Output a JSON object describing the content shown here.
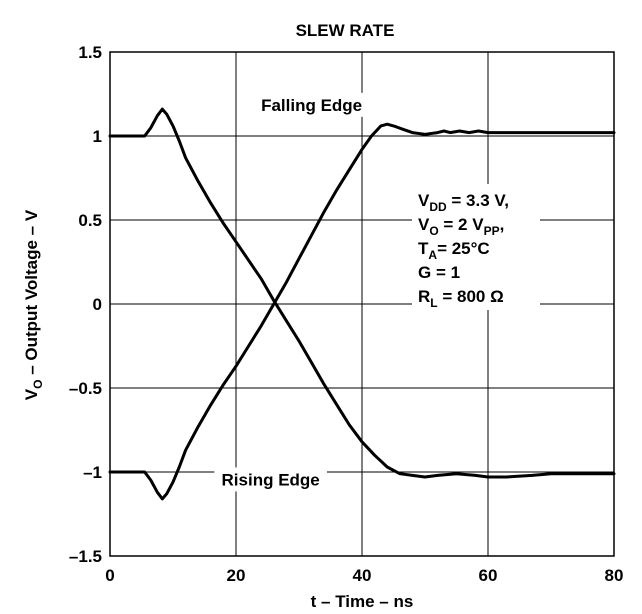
{
  "chart_data": {
    "type": "line",
    "title": "SLEW RATE",
    "xlabel": "t – Time – ns",
    "ylabel": {
      "main": "V",
      "sub": "O",
      "rest": " – Output Voltage – V"
    },
    "xlim": [
      0,
      80
    ],
    "ylim": [
      -1.5,
      1.5
    ],
    "x_ticks": [
      {
        "value": 0,
        "label": "0"
      },
      {
        "value": 20,
        "label": "20"
      },
      {
        "value": 40,
        "label": "40"
      },
      {
        "value": 60,
        "label": "60"
      },
      {
        "value": 80,
        "label": "80"
      }
    ],
    "y_ticks": [
      {
        "value": 1.5,
        "label": "1.5"
      },
      {
        "value": 1,
        "label": "1"
      },
      {
        "value": 0.5,
        "label": "0.5"
      },
      {
        "value": 0,
        "label": "0"
      },
      {
        "value": -0.5,
        "label": "–0.5"
      },
      {
        "value": -1,
        "label": "–1"
      },
      {
        "value": -1.5,
        "label": "–1.5"
      }
    ],
    "grid": true,
    "series": [
      {
        "name": "Falling Edge",
        "points": [
          [
            0,
            1.0
          ],
          [
            5.5,
            1.0
          ],
          [
            6.5,
            1.05
          ],
          [
            7.5,
            1.12
          ],
          [
            8.3,
            1.16
          ],
          [
            9,
            1.13
          ],
          [
            10,
            1.06
          ],
          [
            11,
            0.97
          ],
          [
            12,
            0.87
          ],
          [
            14,
            0.73
          ],
          [
            16,
            0.6
          ],
          [
            18,
            0.48
          ],
          [
            20,
            0.37
          ],
          [
            22,
            0.26
          ],
          [
            24,
            0.15
          ],
          [
            26,
            0.02
          ],
          [
            28,
            -0.1
          ],
          [
            30,
            -0.22
          ],
          [
            32,
            -0.35
          ],
          [
            34,
            -0.48
          ],
          [
            36,
            -0.6
          ],
          [
            38,
            -0.72
          ],
          [
            40,
            -0.82
          ],
          [
            42,
            -0.9
          ],
          [
            44,
            -0.97
          ],
          [
            46,
            -1.01
          ],
          [
            48,
            -1.02
          ],
          [
            50,
            -1.03
          ],
          [
            52,
            -1.02
          ],
          [
            55,
            -1.01
          ],
          [
            58,
            -1.02
          ],
          [
            60,
            -1.03
          ],
          [
            63,
            -1.03
          ],
          [
            67,
            -1.02
          ],
          [
            70,
            -1.01
          ],
          [
            80,
            -1.01
          ]
        ]
      },
      {
        "name": "Rising Edge",
        "points": [
          [
            0,
            -1.0
          ],
          [
            5.5,
            -1.0
          ],
          [
            6.5,
            -1.05
          ],
          [
            7.5,
            -1.12
          ],
          [
            8.3,
            -1.16
          ],
          [
            9,
            -1.13
          ],
          [
            10,
            -1.06
          ],
          [
            11,
            -0.97
          ],
          [
            12,
            -0.87
          ],
          [
            14,
            -0.73
          ],
          [
            16,
            -0.6
          ],
          [
            18,
            -0.48
          ],
          [
            20,
            -0.37
          ],
          [
            22,
            -0.25
          ],
          [
            24,
            -0.13
          ],
          [
            26,
            0.0
          ],
          [
            28,
            0.13
          ],
          [
            30,
            0.27
          ],
          [
            32,
            0.41
          ],
          [
            34,
            0.55
          ],
          [
            36,
            0.68
          ],
          [
            38,
            0.8
          ],
          [
            40,
            0.92
          ],
          [
            41.5,
            1.0
          ],
          [
            43,
            1.06
          ],
          [
            44,
            1.07
          ],
          [
            45,
            1.06
          ],
          [
            46.5,
            1.04
          ],
          [
            48,
            1.02
          ],
          [
            50,
            1.01
          ],
          [
            52,
            1.02
          ],
          [
            53,
            1.03
          ],
          [
            54,
            1.02
          ],
          [
            55.5,
            1.03
          ],
          [
            57,
            1.02
          ],
          [
            58.5,
            1.03
          ],
          [
            60,
            1.02
          ],
          [
            80,
            1.02
          ]
        ]
      }
    ],
    "annotations": [
      {
        "x": 32,
        "y": 1.15,
        "text": "Falling Edge"
      },
      {
        "x": 25.5,
        "y": -1.08,
        "text": "Rising Edge"
      }
    ],
    "conditions": [
      {
        "main": "V",
        "sub": "DD",
        "rest": " = 3.3 V,"
      },
      {
        "main": "V",
        "sub": "O",
        "rest": " = 2 V",
        "sub2": "PP",
        "rest2": ","
      },
      {
        "main": "T",
        "sub": "A",
        "rest": "= 25°C"
      },
      {
        "main": "G = 1"
      },
      {
        "main": "R",
        "sub": "L",
        "rest": " = 800 Ω"
      }
    ]
  }
}
